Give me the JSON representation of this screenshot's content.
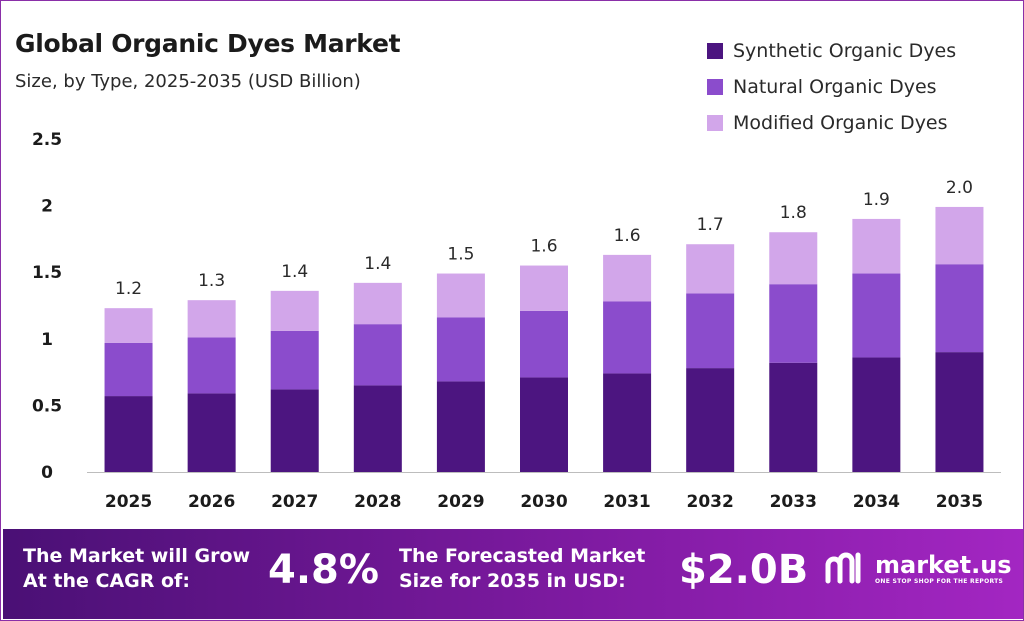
{
  "title": "Global Organic Dyes Market",
  "subtitle": "Size, by Type, 2025-2035 (USD Billion)",
  "colors": {
    "synthetic": "#4c1580",
    "natural": "#8b4ccc",
    "modified": "#d2a6ea"
  },
  "chart_data": {
    "type": "bar",
    "stacked": true,
    "categories": [
      "2025",
      "2026",
      "2027",
      "2028",
      "2029",
      "2030",
      "2031",
      "2032",
      "2033",
      "2034",
      "2035"
    ],
    "series": [
      {
        "name": "Synthetic Organic Dyes",
        "values": [
          0.57,
          0.59,
          0.62,
          0.65,
          0.68,
          0.71,
          0.74,
          0.78,
          0.82,
          0.86,
          0.9
        ]
      },
      {
        "name": "Natural Organic Dyes",
        "values": [
          0.4,
          0.42,
          0.44,
          0.46,
          0.48,
          0.5,
          0.54,
          0.56,
          0.59,
          0.63,
          0.66
        ]
      },
      {
        "name": "Modified Organic Dyes",
        "values": [
          0.26,
          0.28,
          0.3,
          0.31,
          0.33,
          0.34,
          0.35,
          0.37,
          0.39,
          0.41,
          0.43
        ]
      }
    ],
    "totals_labels": [
      "1.2",
      "1.3",
      "1.4",
      "1.4",
      "1.5",
      "1.6",
      "1.6",
      "1.7",
      "1.8",
      "1.9",
      "2.0"
    ],
    "y_ticks": [
      "0",
      "0.5",
      "1",
      "1.5",
      "2",
      "2.5"
    ],
    "ylim": [
      0,
      2.5
    ],
    "grid": false,
    "legend": "top-right"
  },
  "footer": {
    "cagr_text_1": "The Market will Grow",
    "cagr_text_2": "At the CAGR of:",
    "cagr_value": "4.8%",
    "forecast_text_1": "The Forecasted Market",
    "forecast_text_2": "Size for 2035 in USD:",
    "forecast_value": "$2.0B",
    "logo_name": "market.us",
    "logo_tagline": "ONE STOP SHOP FOR THE REPORTS"
  }
}
